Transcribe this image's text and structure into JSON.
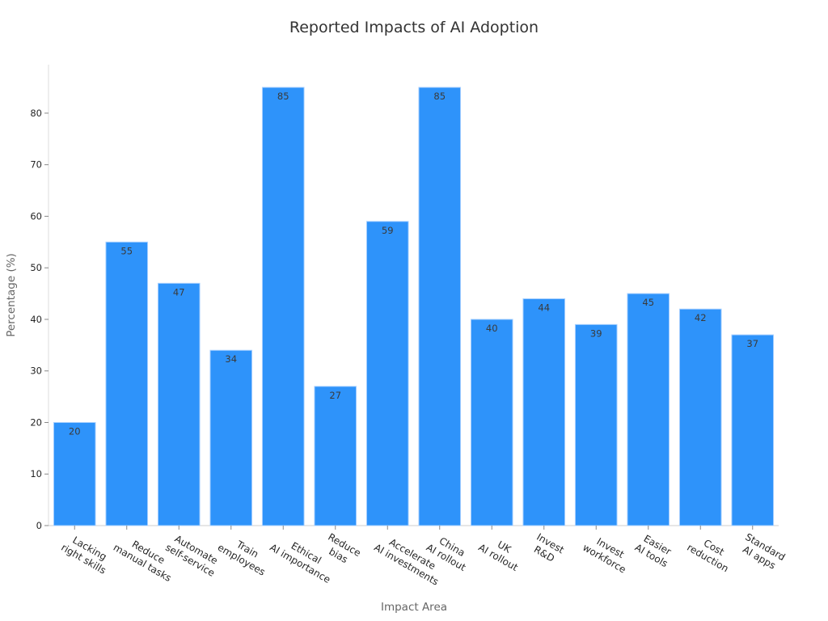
{
  "chart_data": {
    "type": "bar",
    "title": "Reported Impacts of AI Adoption",
    "xlabel": "Impact Area",
    "ylabel": "Percentage (%)",
    "categories": [
      "Lacking\nright skills",
      "Reduce\nmanual tasks",
      "Automate\nself-service",
      "Train\nemployees",
      "Ethical\nAI importance",
      "Reduce\nbias",
      "Accelerate\nAI investments",
      "China\nAI rollout",
      "UK\nAI rollout",
      "Invest\nR&D",
      "Invest\nworkforce",
      "Easier\nAI tools",
      "Cost\nreduction",
      "Standard\nAI apps"
    ],
    "values": [
      20,
      55,
      47,
      34,
      85,
      27,
      59,
      85,
      40,
      44,
      39,
      45,
      42,
      37
    ],
    "ylim": [
      0,
      89.4
    ],
    "yticks": [
      0,
      10,
      20,
      30,
      40,
      50,
      60,
      70,
      80
    ],
    "grid": false,
    "data_labels": true,
    "colors": {
      "bar": "#2e93fa",
      "bar_edge": "#a8d0ff"
    }
  }
}
